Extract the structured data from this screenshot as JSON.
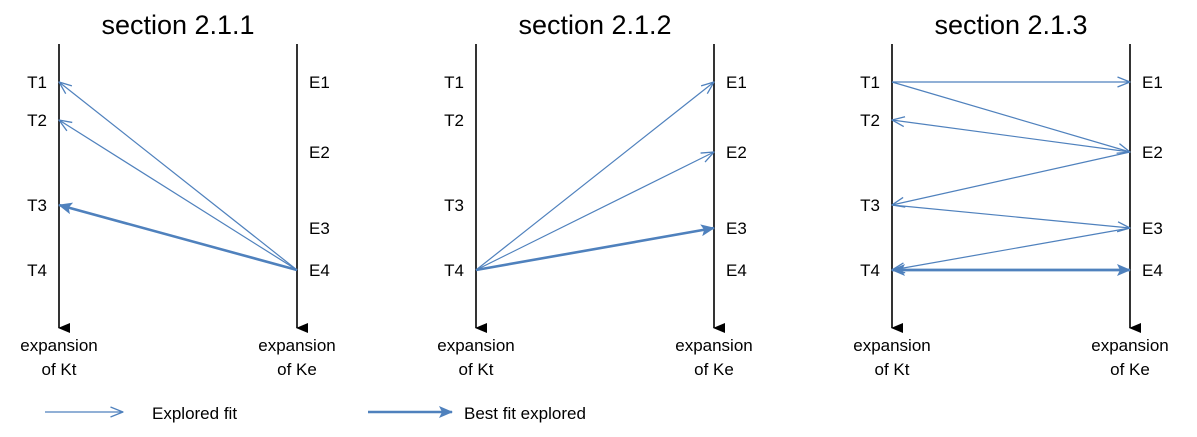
{
  "colors": {
    "axis": "#000000",
    "arrow": "#4f81bd"
  },
  "panels": [
    {
      "title": "section 2.1.1",
      "left_labels": [
        "T1",
        "T2",
        "T3",
        "T4"
      ],
      "right_labels": [
        "E1",
        "E2",
        "E3",
        "E4"
      ],
      "left_axis_label": [
        "expansion",
        "of Kt"
      ],
      "right_axis_label": [
        "expansion",
        "of Ke"
      ],
      "arrows": [
        {
          "from": "E4",
          "to": "T1",
          "kind": "explored"
        },
        {
          "from": "E4",
          "to": "T2",
          "kind": "explored"
        },
        {
          "from": "E4",
          "to": "T3",
          "kind": "best"
        }
      ]
    },
    {
      "title": "section 2.1.2",
      "left_labels": [
        "T1",
        "T2",
        "T3",
        "T4"
      ],
      "right_labels": [
        "E1",
        "E2",
        "E3",
        "E4"
      ],
      "left_axis_label": [
        "expansion",
        "of Kt"
      ],
      "right_axis_label": [
        "expansion",
        "of Ke"
      ],
      "arrows": [
        {
          "from": "T4",
          "to": "E1",
          "kind": "explored"
        },
        {
          "from": "T4",
          "to": "E2",
          "kind": "explored"
        },
        {
          "from": "T4",
          "to": "E3",
          "kind": "best"
        }
      ]
    },
    {
      "title": "section 2.1.3",
      "left_labels": [
        "T1",
        "T2",
        "T3",
        "T4"
      ],
      "right_labels": [
        "E1",
        "E2",
        "E3",
        "E4"
      ],
      "left_axis_label": [
        "expansion",
        "of Kt"
      ],
      "right_axis_label": [
        "expansion",
        "of Ke"
      ],
      "arrows": [
        {
          "from": "T1",
          "to": "E1",
          "kind": "explored"
        },
        {
          "from": "T1",
          "to": "E2",
          "kind": "explored"
        },
        {
          "from": "E2",
          "to": "T2",
          "kind": "explored"
        },
        {
          "from": "E2",
          "to": "T3",
          "kind": "explored"
        },
        {
          "from": "T3",
          "to": "E3",
          "kind": "explored"
        },
        {
          "from": "E3",
          "to": "T4",
          "kind": "explored"
        },
        {
          "from": "T4",
          "to": "E4",
          "kind": "best"
        },
        {
          "from": "E4",
          "to": "T4",
          "kind": "best"
        }
      ]
    }
  ],
  "legend": {
    "explored": "Explored fit",
    "best": "Best fit explored"
  }
}
